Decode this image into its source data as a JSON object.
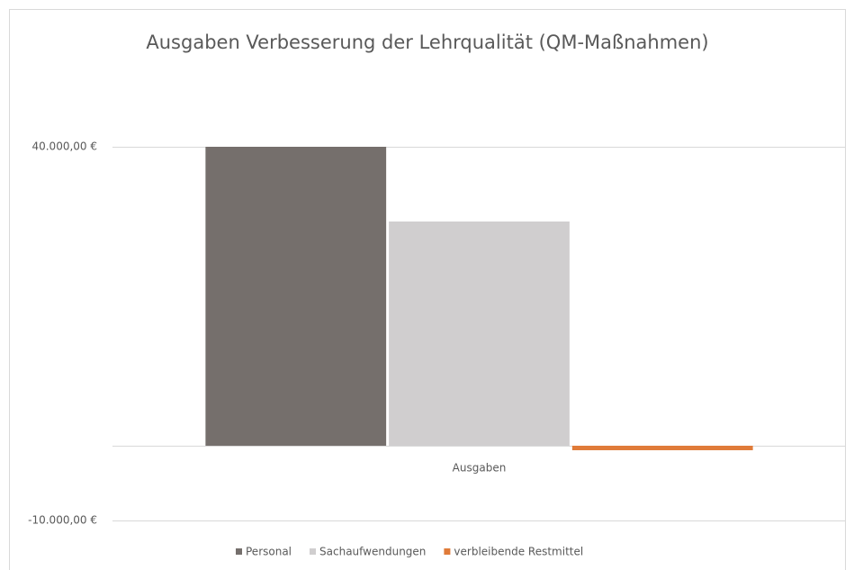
{
  "chart_data": {
    "type": "bar",
    "title": "Ausgaben Verbesserung der Lehrqualität (QM-Maßnahmen)",
    "categories": [
      "Ausgaben"
    ],
    "series": [
      {
        "name": "Personal",
        "color": "#756f6c",
        "values": [
          40000
        ]
      },
      {
        "name": "Sachaufwendungen",
        "color": "#d0cecf",
        "values": [
          30000
        ]
      },
      {
        "name": "verbleibende Restmittel",
        "color": "#e07b39",
        "values": [
          -600
        ]
      }
    ],
    "ylim": [
      -10000,
      40000
    ],
    "yticks": [
      {
        "value": -10000,
        "label": "-10.000,00 €"
      },
      {
        "value": 40000,
        "label": "40.000,00 €"
      }
    ],
    "grid": true,
    "legend": "bottom"
  }
}
